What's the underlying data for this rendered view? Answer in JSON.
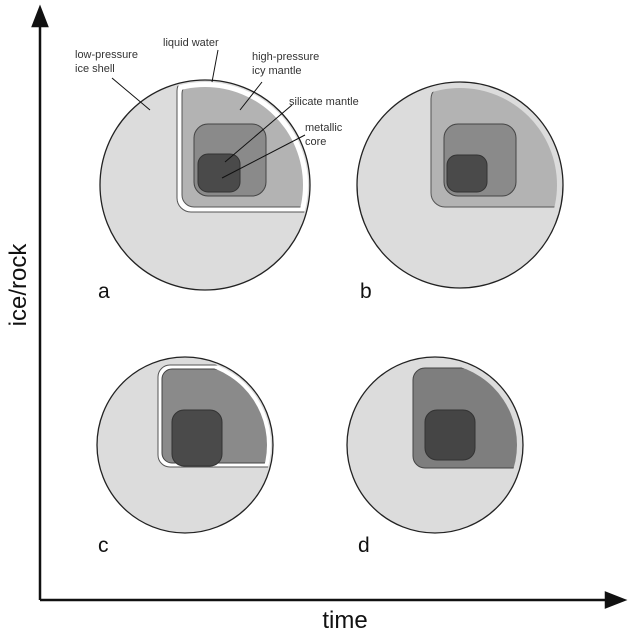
{
  "axes": {
    "y_label": "ice/rock",
    "x_label": "time"
  },
  "annotations": [
    {
      "lines": [
        "low-pressure",
        "ice shell"
      ]
    },
    {
      "lines": [
        "liquid water"
      ]
    },
    {
      "lines": [
        "high-pressure",
        "icy mantle"
      ]
    },
    {
      "lines": [
        "silicate mantle"
      ]
    },
    {
      "lines": [
        "metallic",
        "core"
      ]
    }
  ],
  "panels": [
    {
      "label": "a"
    },
    {
      "label": "b"
    },
    {
      "label": "c"
    },
    {
      "label": "d"
    }
  ]
}
